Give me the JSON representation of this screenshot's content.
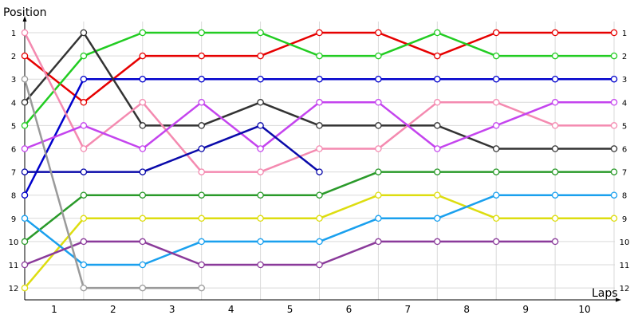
{
  "chart_data": {
    "type": "line",
    "title": "",
    "ylabel": "Position",
    "xlabel": "Laps",
    "x_positions": [
      0,
      1,
      2,
      3,
      4,
      5,
      6,
      7,
      8,
      9,
      10
    ],
    "x_tick_labels": [
      "1",
      "2",
      "3",
      "4",
      "5",
      "6",
      "7",
      "8",
      "9",
      "10"
    ],
    "y_ticks": [
      1,
      2,
      3,
      4,
      5,
      6,
      7,
      8,
      9,
      10,
      11,
      12
    ],
    "ylim": [
      1,
      12
    ],
    "y_inverted": true,
    "grid": true,
    "marker": "open-circle",
    "series": [
      {
        "color": "#e60000",
        "values": [
          2,
          4,
          2,
          2,
          2,
          1,
          1,
          2,
          1,
          1,
          1
        ]
      },
      {
        "color": "#22cc22",
        "values": [
          5,
          2,
          1,
          1,
          1,
          2,
          2,
          1,
          2,
          2,
          2
        ]
      },
      {
        "color": "#0000cc",
        "values": [
          8,
          3,
          3,
          3,
          3,
          3,
          3,
          3,
          3,
          3,
          3
        ]
      },
      {
        "color": "#333333",
        "values": [
          4,
          1,
          5,
          5,
          4,
          5,
          5,
          5,
          6,
          6,
          6
        ]
      },
      {
        "color": "#f48ab0",
        "values": [
          1,
          6,
          4,
          7,
          7,
          6,
          6,
          4,
          4,
          5,
          5
        ]
      },
      {
        "color": "#c444ee",
        "values": [
          6,
          5,
          6,
          4,
          6,
          4,
          4,
          6,
          5,
          4,
          4
        ]
      },
      {
        "color": "#0a0aaa",
        "values": [
          7,
          7,
          7,
          6,
          5,
          7
        ]
      },
      {
        "color": "#2a9a2a",
        "values": [
          10,
          8,
          8,
          8,
          8,
          8,
          7,
          7,
          7,
          7,
          7
        ]
      },
      {
        "color": "#dddd10",
        "values": [
          12,
          9,
          9,
          9,
          9,
          9,
          8,
          8,
          9,
          9,
          9
        ]
      },
      {
        "color": "#1aa0ee",
        "values": [
          9,
          11,
          11,
          10,
          10,
          10,
          9,
          9,
          8,
          8,
          8
        ]
      },
      {
        "color": "#8a3a9a",
        "values": [
          11,
          10,
          10,
          11,
          11,
          11,
          10,
          10,
          10,
          10
        ]
      },
      {
        "color": "#9a9a9a",
        "values": [
          3,
          12,
          12,
          12
        ]
      }
    ]
  }
}
